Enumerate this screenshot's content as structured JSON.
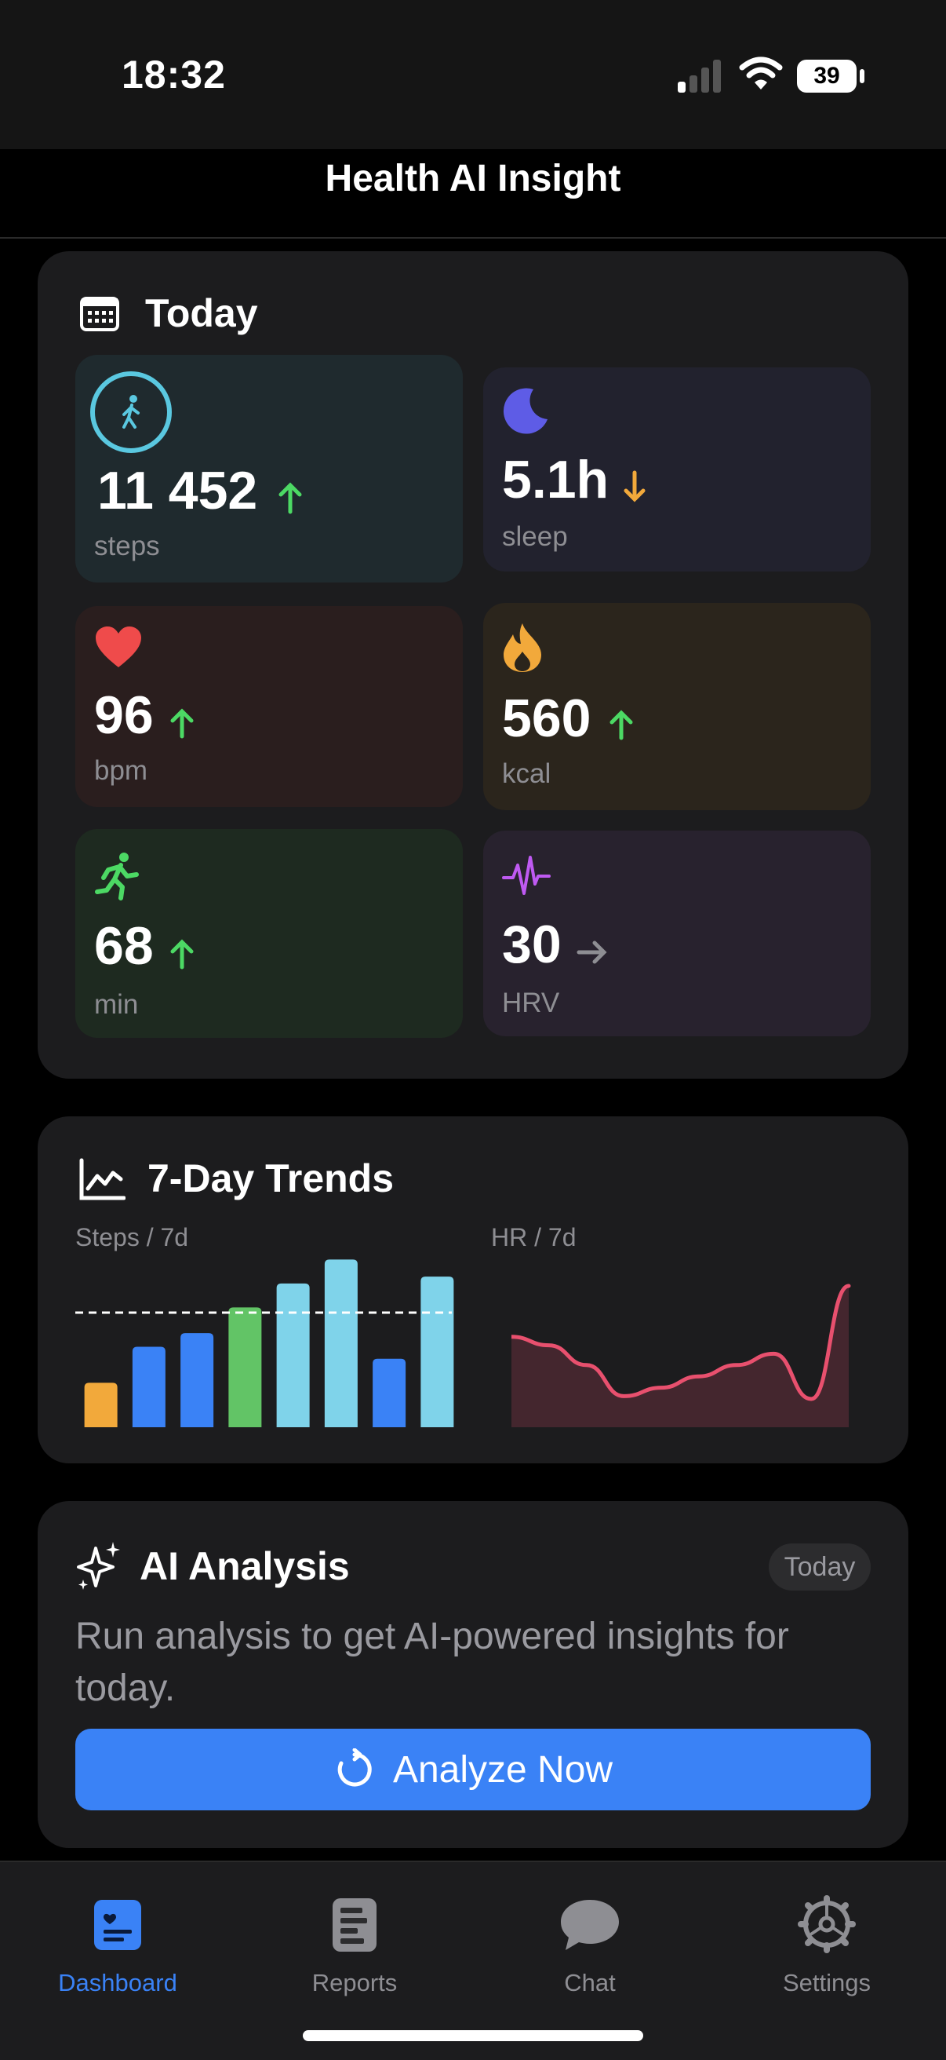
{
  "status": {
    "time": "18:32",
    "battery": "39"
  },
  "nav": {
    "title": "Health AI Insight"
  },
  "today": {
    "title": "Today",
    "tiles": [
      {
        "value": "11 452",
        "unit": "steps",
        "trend": "up",
        "icon": "walking-figure-icon"
      },
      {
        "value": "5.1h",
        "unit": "sleep",
        "trend": "down",
        "icon": "moon-icon"
      },
      {
        "value": "96",
        "unit": "bpm",
        "trend": "up",
        "icon": "heart-icon"
      },
      {
        "value": "560",
        "unit": "kcal",
        "trend": "up",
        "icon": "flame-icon"
      },
      {
        "value": "68",
        "unit": "min",
        "trend": "up",
        "icon": "running-figure-icon"
      },
      {
        "value": "30",
        "unit": "HRV",
        "trend": "flat",
        "icon": "waveform-icon"
      }
    ]
  },
  "trends": {
    "title": "7-Day Trends",
    "steps_label": "Steps / 7d",
    "hr_label": "HR / 7d"
  },
  "chart_data": [
    {
      "type": "bar",
      "title": "Steps / 7d",
      "values": [
        2600,
        4700,
        5500,
        7000,
        8400,
        9800,
        4000,
        8800
      ],
      "reference_line": 6700,
      "colors": [
        "#f2a93b",
        "#3a82f6",
        "#3a82f6",
        "#62c466",
        "#7fd3ea",
        "#7fd3ea",
        "#3a82f6",
        "#7fd3ea"
      ],
      "ylim": [
        0,
        10000
      ]
    },
    {
      "type": "area",
      "title": "HR / 7d",
      "values": [
        72,
        69,
        62,
        51,
        54,
        58,
        62,
        66,
        50,
        90
      ],
      "color": "#e8506e",
      "ylim": [
        40,
        95
      ]
    }
  ],
  "ai": {
    "title": "AI Analysis",
    "badge": "Today",
    "body": "Run analysis to get AI-powered insights for today.",
    "button": "Analyze Now"
  },
  "tabs": [
    {
      "label": "Dashboard",
      "icon": "dashboard-icon",
      "active": true
    },
    {
      "label": "Reports",
      "icon": "reports-icon",
      "active": false
    },
    {
      "label": "Chat",
      "icon": "chat-bubble-icon",
      "active": false
    },
    {
      "label": "Settings",
      "icon": "gear-icon",
      "active": false
    }
  ],
  "colors": {
    "accent": "#3a82f6",
    "up": "#4cd964",
    "down": "#f2a93b",
    "flat": "#8e8e93"
  }
}
